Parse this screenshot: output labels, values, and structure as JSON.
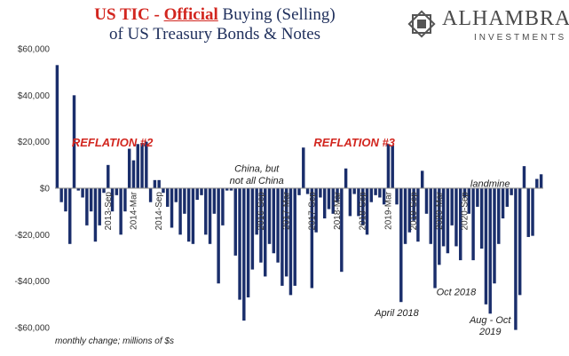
{
  "header": {
    "title_prefix": "US TIC",
    "title_dash": " - ",
    "title_official": "Official",
    "title_rest_line1": " Buying (Selling)",
    "title_line2": "of US Treasury Bonds & Notes"
  },
  "logo": {
    "name": "ALHAMBRA",
    "sub": "INVESTMENTS",
    "icon": "alhambra-star-icon"
  },
  "footnote": "monthly change; millions of $s",
  "colors": {
    "bar": "#1a2e6b",
    "title_red": "#d2261f",
    "title_blue": "#1f2f5c"
  },
  "chart_data": {
    "type": "bar",
    "ylim": [
      -60000,
      60000
    ],
    "yticks": [
      60000,
      40000,
      20000,
      0,
      -20000,
      -40000,
      -60000
    ],
    "ytick_labels": [
      "$60,000",
      "$40,000",
      "$20,000",
      "$0",
      "-$20,000",
      "-$40,000",
      "-$60,000"
    ],
    "grid": false,
    "legend": "none",
    "values": [
      53000,
      -6000,
      -10000,
      -24000,
      40000,
      -1000,
      -4000,
      -16000,
      -10000,
      -23000,
      -16000,
      -2000,
      10000,
      -10000,
      -3000,
      -20000,
      -10000,
      17000,
      12000,
      19000,
      19500,
      20000,
      -6000,
      3500,
      3500,
      -2000,
      -8000,
      -17000,
      -6000,
      -20000,
      -11000,
      -23000,
      -24000,
      -5000,
      -3000,
      -20000,
      -24000,
      -11000,
      -41000,
      -16000,
      -1000,
      -1000,
      -29000,
      -48000,
      -57000,
      -47000,
      -35000,
      -20000,
      -32000,
      -38000,
      -24000,
      -28000,
      -32000,
      -42000,
      -38000,
      -46000,
      -42000,
      -3000,
      17500,
      -2500,
      -43000,
      -19000,
      -4000,
      -13000,
      -9000,
      -11000,
      -6000,
      -36000,
      8500,
      -12000,
      -2500,
      -12000,
      -16000,
      -20000,
      -6000,
      -3000,
      -4000,
      -7000,
      19000,
      18500,
      -7000,
      -49000,
      -24000,
      -19000,
      -14000,
      -23000,
      7500,
      -11000,
      -24000,
      -43000,
      -33000,
      -25000,
      -28000,
      -16000,
      -25000,
      -31000,
      -4000,
      -11000,
      -31000,
      -8000,
      -26000,
      -50000,
      -54000,
      -41000,
      -24000,
      -13000,
      -8000,
      -3000,
      -61000,
      -46000,
      9500,
      -21000,
      -20500,
      4000,
      6000
    ],
    "x_tick_labels": [
      {
        "index": 12,
        "label": "2013-Sep"
      },
      {
        "index": 18,
        "label": "2014-Mar"
      },
      {
        "index": 24,
        "label": "2014-Sep"
      },
      {
        "index": 48,
        "label": "2016-Sep"
      },
      {
        "index": 54,
        "label": "2017-Mar"
      },
      {
        "index": 60,
        "label": "2017-Sep"
      },
      {
        "index": 66,
        "label": "2018-Mar"
      },
      {
        "index": 72,
        "label": "2018-Sep"
      },
      {
        "index": 78,
        "label": "2019-Mar"
      },
      {
        "index": 84,
        "label": "2019-Sep"
      },
      {
        "index": 90,
        "label": "2020-Mar"
      },
      {
        "index": 96,
        "label": "2020-Sep"
      }
    ],
    "annotations": [
      {
        "text": "REFLATION #2",
        "style": "red",
        "index": 13,
        "y": 18000
      },
      {
        "text": "REFLATION #3",
        "style": "red",
        "index": 70,
        "y": 18000
      },
      {
        "text": "China, but",
        "style": "italic",
        "index": 47,
        "y": 7000
      },
      {
        "text": "not all China",
        "style": "italic",
        "index": 47,
        "y": 2000
      },
      {
        "text": "landmine",
        "style": "italic",
        "index": 102,
        "y": 600
      },
      {
        "text": "Oct 2018",
        "style": "italic",
        "index": 94,
        "y": -46000
      },
      {
        "text": "April 2018",
        "style": "italic",
        "index": 80,
        "y": -55000
      },
      {
        "text": "Aug - Oct",
        "style": "italic",
        "index": 102,
        "y": -58000
      },
      {
        "text": "2019",
        "style": "italic",
        "index": 102,
        "y": -63000
      }
    ]
  }
}
